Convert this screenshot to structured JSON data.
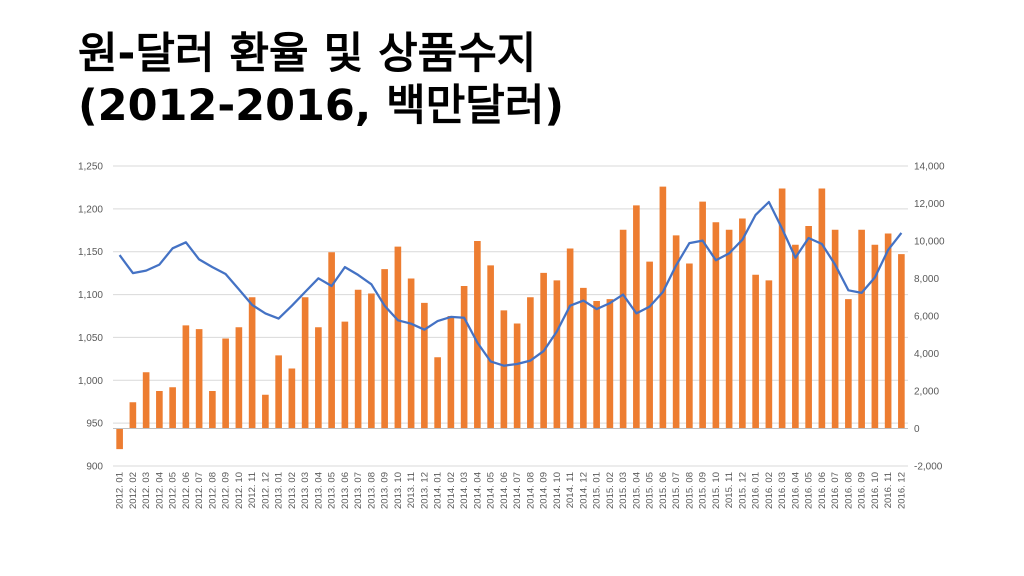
{
  "title": {
    "line1": "원-달러 환율 및 상품수지",
    "line2": "(2012-2016, 백만달러)"
  },
  "colors": {
    "bar": "#ED7D31",
    "line": "#4472C4",
    "grid": "#D9D9D9",
    "axis_text": "#595959"
  },
  "chart_data": {
    "type": "bar",
    "combo": "bar+line (dual axis)",
    "categories": [
      "2012. 01",
      "2012. 02",
      "2012. 03",
      "2012. 04",
      "2012. 05",
      "2012. 06",
      "2012. 07",
      "2012. 08",
      "2012. 09",
      "2012. 10",
      "2012. 11",
      "2012. 12",
      "2013. 01",
      "2013. 02",
      "2013. 03",
      "2013. 04",
      "2013. 05",
      "2013. 06",
      "2013. 07",
      "2013. 08",
      "2013. 09",
      "2013. 10",
      "2013. 11",
      "2013. 12",
      "2014. 01",
      "2014. 02",
      "2014. 03",
      "2014. 04",
      "2014. 05",
      "2014. 06",
      "2014. 07",
      "2014. 08",
      "2014. 09",
      "2014. 10",
      "2014. 11",
      "2014. 12",
      "2015. 01",
      "2015. 02",
      "2015. 03",
      "2015. 04",
      "2015. 05",
      "2015. 06",
      "2015. 07",
      "2015. 08",
      "2015. 09",
      "2015. 10",
      "2015. 11",
      "2015. 12",
      "2016. 01",
      "2016. 02",
      "2016. 03",
      "2016. 04",
      "2016. 05",
      "2016. 06",
      "2016. 07",
      "2016. 08",
      "2016. 09",
      "2016. 10",
      "2016. 11",
      "2016. 12"
    ],
    "series": [
      {
        "type": "bar",
        "axis": "right",
        "values": [
          -1100,
          1400,
          3000,
          2000,
          2200,
          5500,
          5300,
          2000,
          4800,
          5400,
          7000,
          1800,
          3900,
          3200,
          7000,
          5400,
          9400,
          5700,
          7400,
          7200,
          8500,
          9700,
          8000,
          6700,
          3800,
          6000,
          7600,
          10000,
          8700,
          6300,
          5600,
          7000,
          8300,
          7900,
          9600,
          7500,
          6800,
          6900,
          10600,
          11900,
          8900,
          12900,
          10300,
          8800,
          12100,
          11000,
          10600,
          11200,
          8200,
          7900,
          12800,
          9800,
          10800,
          12800,
          10600,
          6900,
          10600,
          9800,
          10400,
          9300
        ]
      },
      {
        "type": "line",
        "axis": "left",
        "values": [
          1146,
          1125,
          1128,
          1135,
          1154,
          1161,
          1141,
          1132,
          1124,
          1106,
          1088,
          1078,
          1072,
          1087,
          1103,
          1119,
          1110,
          1132,
          1123,
          1112,
          1087,
          1070,
          1066,
          1059,
          1069,
          1074,
          1073,
          1044,
          1022,
          1017,
          1019,
          1023,
          1034,
          1057,
          1087,
          1093,
          1083,
          1090,
          1100,
          1078,
          1086,
          1103,
          1134,
          1160,
          1163,
          1140,
          1148,
          1164,
          1193,
          1208,
          1177,
          1143,
          1166,
          1159,
          1135,
          1105,
          1102,
          1120,
          1152,
          1172
        ]
      }
    ],
    "left_axis": {
      "ylim": [
        900,
        1250
      ],
      "ticks": [
        "900",
        "950",
        "1,000",
        "1,050",
        "1,100",
        "1,150",
        "1,200",
        "1,250"
      ],
      "tick_values": [
        900,
        950,
        1000,
        1050,
        1100,
        1150,
        1200,
        1250
      ]
    },
    "right_axis": {
      "ylim": [
        -2000,
        14000
      ],
      "ticks": [
        "-2,000",
        "0",
        "2,000",
        "4,000",
        "6,000",
        "8,000",
        "10,000",
        "12,000",
        "14,000"
      ],
      "tick_values": [
        -2000,
        0,
        2000,
        4000,
        6000,
        8000,
        10000,
        12000,
        14000
      ]
    },
    "grid": true,
    "legend": "none"
  }
}
